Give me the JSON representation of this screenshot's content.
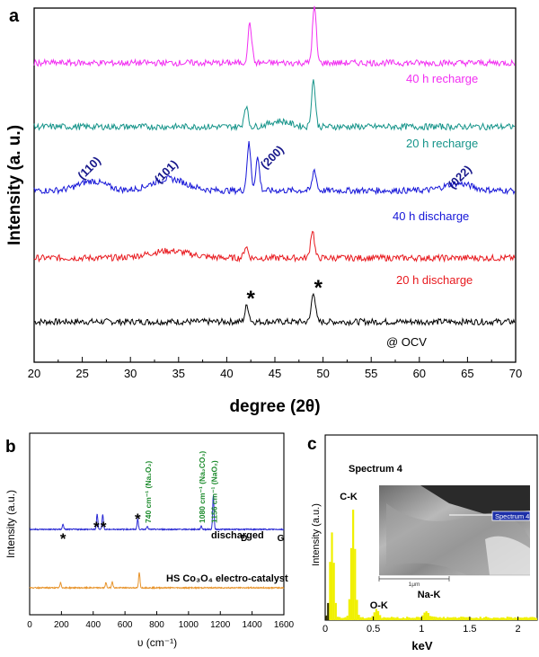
{
  "panels": {
    "a": "a",
    "b": "b",
    "c": "c"
  },
  "chart_data": [
    {
      "panel": "a",
      "type": "line",
      "xlabel": "degree (2θ)",
      "ylabel": "Intensity (a. u.)",
      "xlim": [
        20,
        70
      ],
      "xticks": [
        20,
        25,
        30,
        35,
        40,
        45,
        50,
        55,
        60,
        65,
        70
      ],
      "series": [
        {
          "name": "@ OCV",
          "color": "#000000",
          "peaks": [
            [
              42.1,
              0.35
            ],
            [
              49.0,
              0.65
            ]
          ],
          "humps": []
        },
        {
          "name": "20 h discharge",
          "color": "#e8191e",
          "peaks": [
            [
              42.0,
              0.25
            ],
            [
              48.9,
              0.6
            ]
          ],
          "humps": [
            [
              34.0,
              0.15,
              3
            ]
          ]
        },
        {
          "name": "40 h discharge",
          "color": "#1515d8",
          "peaks": [
            [
              42.3,
              1.0
            ],
            [
              43.2,
              0.7
            ],
            [
              49.1,
              0.45
            ]
          ],
          "humps": [
            [
              26.0,
              0.2,
              2
            ],
            [
              34.0,
              0.25,
              2.5
            ],
            [
              64.0,
              0.15,
              2
            ]
          ]
        },
        {
          "name": "20 h recharge",
          "color": "#16948a",
          "peaks": [
            [
              42.0,
              0.45
            ],
            [
              49.0,
              1.0
            ]
          ],
          "humps": [
            [
              45.5,
              0.12,
              1.5
            ]
          ]
        },
        {
          "name": "40 h recharge",
          "color": "#f22ef2",
          "peaks": [
            [
              42.4,
              0.85
            ],
            [
              49.1,
              1.2
            ]
          ],
          "humps": []
        }
      ],
      "star_labels": [
        {
          "text": "*",
          "x": 42.5
        },
        {
          "text": "*",
          "x": 49.5
        }
      ],
      "hkl_labels": [
        {
          "text": "(110)",
          "x": 26.0
        },
        {
          "text": "(101)",
          "x": 34.0
        },
        {
          "text": "(200)",
          "x": 45.0
        },
        {
          "text": "(022)",
          "x": 64.5
        }
      ]
    },
    {
      "panel": "b",
      "type": "line",
      "xlabel": "υ (cm⁻¹)",
      "ylabel": "Intensity (a.u.)",
      "xlim": [
        0,
        1600
      ],
      "xticks": [
        0,
        200,
        400,
        600,
        800,
        1000,
        1200,
        1400,
        1600
      ],
      "series": [
        {
          "name": "discharged",
          "color": "#2b2bd4",
          "peaks": [
            [
              210,
              0.15
            ],
            [
              425,
              0.45
            ],
            [
              460,
              0.45
            ],
            [
              680,
              0.3
            ],
            [
              740,
              0.1
            ],
            [
              1080,
              0.1
            ],
            [
              1156,
              1.0
            ]
          ]
        },
        {
          "name": "HS Co₃O₄ electro-catalyst",
          "color": "#e7932a",
          "peaks": [
            [
              195,
              0.2
            ],
            [
              480,
              0.2
            ],
            [
              520,
              0.25
            ],
            [
              690,
              0.6
            ]
          ]
        }
      ],
      "annotations": [
        {
          "text": "*",
          "x": 210
        },
        {
          "text": "*",
          "x": 420
        },
        {
          "text": "*",
          "x": 465
        },
        {
          "text": "*",
          "x": 680
        },
        {
          "text": "740 cm⁻¹ (Na₂O₂)",
          "x": 740
        },
        {
          "text": "1080 cm⁻¹ (Na₂CO₃)",
          "x": 1080
        },
        {
          "text": "1156 cm⁻¹ (NaO₂)",
          "x": 1156
        },
        {
          "text": "D",
          "x": 1350
        },
        {
          "text": "G",
          "x": 1580
        }
      ]
    },
    {
      "panel": "c",
      "type": "bar",
      "title": "Spectrum 4",
      "xlabel": "keV",
      "ylabel": "Intensity (a.u.)",
      "xlim": [
        0,
        2.2
      ],
      "xticks": [
        0,
        0.5,
        1,
        1.5,
        2
      ],
      "xtick_labels": [
        "0",
        "0.5",
        "1",
        "1.5",
        "2"
      ],
      "peak_labels": [
        {
          "text": "C-K",
          "x": 0.28
        },
        {
          "text": "O-K",
          "x": 0.52
        },
        {
          "text": "Na-K",
          "x": 1.04
        }
      ],
      "inset": {
        "label": "Spectrum 4",
        "scale_bar": "1μm"
      }
    }
  ]
}
